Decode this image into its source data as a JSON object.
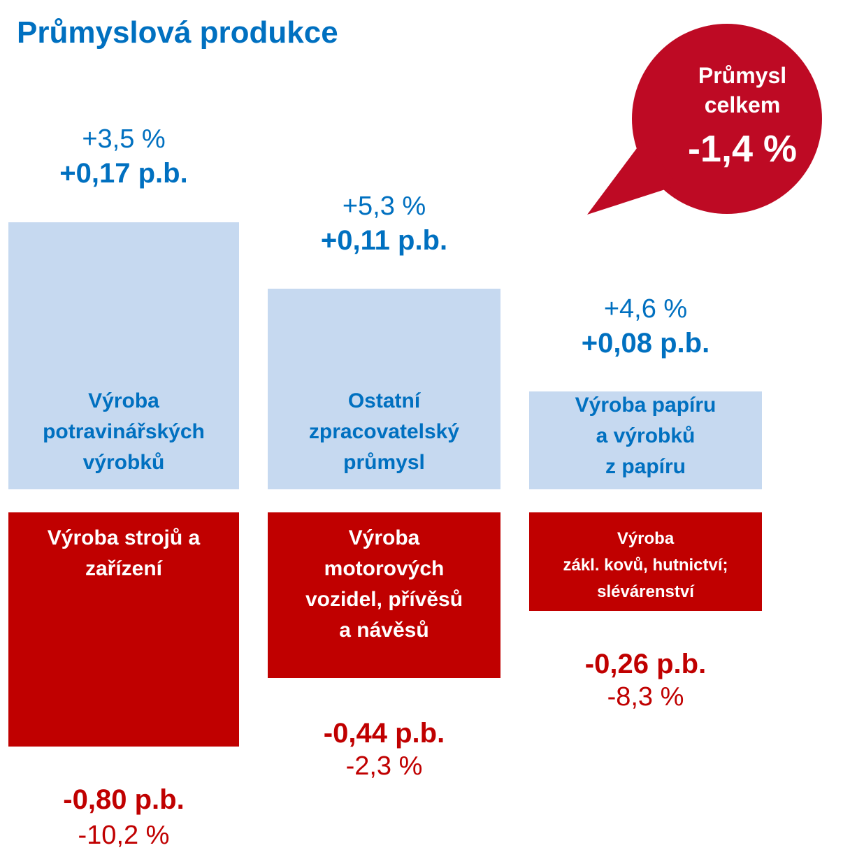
{
  "title": "Průmyslová produkce",
  "bubble": {
    "lines": [
      "Průmysl",
      "celkem"
    ],
    "value": "-1,4 %"
  },
  "positive": [
    {
      "pct": "+3,5 %",
      "pb": "+0,17 p.b.",
      "label": [
        "Výroba",
        "potravinářských",
        "výrobků"
      ]
    },
    {
      "pct": "+5,3 %",
      "pb": "+0,11 p.b.",
      "label": [
        "Ostatní",
        "zpracovatelský",
        "průmysl"
      ]
    },
    {
      "pct": "+4,6 %",
      "pb": "+0,08 p.b.",
      "label": [
        "Výroba papíru",
        "a výrobků",
        "z papíru"
      ]
    }
  ],
  "negative": [
    {
      "label": [
        "Výroba strojů a",
        "zařízení"
      ],
      "pb": "-0,80 p.b.",
      "pct": "-10,2 %"
    },
    {
      "label": [
        "Výroba",
        "motorových",
        "vozidel, přívěsů",
        "a návěsů"
      ],
      "pb": "-0,44 p.b.",
      "pct": "-2,3 %"
    },
    {
      "label": [
        "Výroba",
        "zákl. kovů, hutnictví;",
        "slévárenství"
      ],
      "pb": "-0,26 p.b.",
      "pct": "-8,3 %"
    }
  ]
}
